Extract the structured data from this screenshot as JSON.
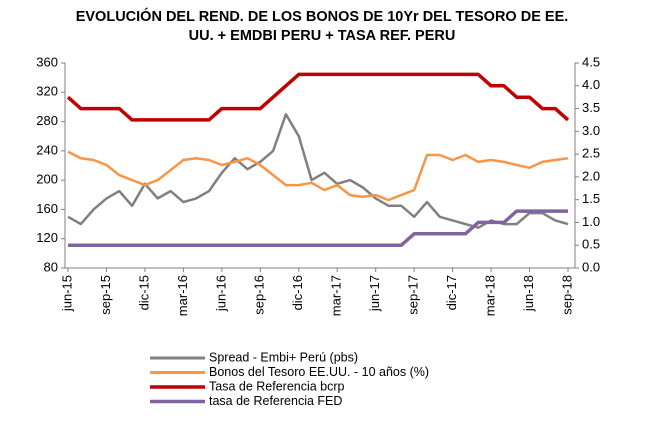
{
  "chart_data": {
    "type": "line",
    "title": [
      "EVOLUCIÓN DEL REND. DE LOS BONOS DE 10Yr DEL TESORO DE EE.",
      "UU. + EMDBI PERU + TASA REF. PERU"
    ],
    "categories": [
      "jun-15",
      null,
      null,
      "sep-15",
      null,
      null,
      "dic-15",
      null,
      null,
      "mar-16",
      null,
      null,
      "jun-16",
      null,
      null,
      "sep-16",
      null,
      null,
      "dic-16",
      null,
      null,
      "mar-17",
      null,
      null,
      "jun-17",
      null,
      null,
      "sep-17",
      null,
      null,
      "dic-17",
      null,
      null,
      "mar-18",
      null,
      null,
      "jun-18",
      null,
      null,
      "sep-18"
    ],
    "ylim": [
      80,
      360
    ],
    "yticks": [
      80,
      120,
      160,
      200,
      240,
      280,
      320,
      360
    ],
    "y2lim": [
      0,
      4.5
    ],
    "y2ticks": [
      {
        "value": 0,
        "label": "0.0"
      },
      0.5,
      {
        "value": 1,
        "label": "1.0"
      },
      1.5,
      {
        "value": 2,
        "label": "2.0"
      },
      2.5,
      {
        "value": 3,
        "label": "3.0"
      },
      3.5,
      {
        "value": 4,
        "label": "4.0"
      },
      4.5
    ],
    "grid": false,
    "legend": "bottom",
    "series": [
      {
        "name": "Spread - Embi+ Perú (pbs)",
        "color": "#808080",
        "axis": "y",
        "values": [
          150,
          140,
          160,
          175,
          185,
          165,
          195,
          175,
          185,
          170,
          175,
          185,
          210,
          230,
          215,
          225,
          240,
          290,
          260,
          200,
          210,
          195,
          200,
          190,
          175,
          165,
          165,
          150,
          170,
          150,
          145,
          140,
          135,
          145,
          140,
          140,
          155,
          155,
          145,
          140
        ]
      },
      {
        "name": "Bonos del Tesoro EE.UU. - 10 años (%)",
        "color": "#f79646",
        "axis": "y2",
        "values": [
          2.55,
          2.41,
          2.37,
          2.26,
          2.04,
          1.93,
          1.82,
          1.93,
          2.15,
          2.37,
          2.41,
          2.37,
          2.26,
          2.33,
          2.41,
          2.26,
          2.04,
          1.82,
          1.82,
          1.87,
          1.71,
          1.82,
          1.6,
          1.56,
          1.6,
          1.49,
          1.6,
          1.71,
          2.48,
          2.48,
          2.37,
          2.48,
          2.33,
          2.37,
          2.33,
          2.26,
          2.2,
          2.33,
          2.37,
          2.41
        ]
      },
      {
        "name": "Tasa de Referencia bcrp",
        "color": "#c00000",
        "axis": "y2",
        "values": [
          3.75,
          3.5,
          3.5,
          3.5,
          3.5,
          3.25,
          3.25,
          3.25,
          3.25,
          3.25,
          3.25,
          3.25,
          3.5,
          3.5,
          3.5,
          3.5,
          3.75,
          4.0,
          4.25,
          4.25,
          4.25,
          4.25,
          4.25,
          4.25,
          4.25,
          4.25,
          4.25,
          4.25,
          4.25,
          4.25,
          4.25,
          4.25,
          4.25,
          4.0,
          4.0,
          3.75,
          3.75,
          3.5,
          3.5,
          3.25
        ]
      },
      {
        "name": "tasa de Referencia FED",
        "color": "#8064a2",
        "axis": "y2",
        "values": [
          0.5,
          0.5,
          0.5,
          0.5,
          0.5,
          0.5,
          0.5,
          0.5,
          0.5,
          0.5,
          0.5,
          0.5,
          0.5,
          0.5,
          0.5,
          0.5,
          0.5,
          0.5,
          0.5,
          0.5,
          0.5,
          0.5,
          0.5,
          0.5,
          0.5,
          0.5,
          0.5,
          0.75,
          0.75,
          0.75,
          0.75,
          0.75,
          1.0,
          1.0,
          1.0,
          1.25,
          1.25,
          1.25,
          1.25,
          1.25
        ]
      }
    ]
  }
}
